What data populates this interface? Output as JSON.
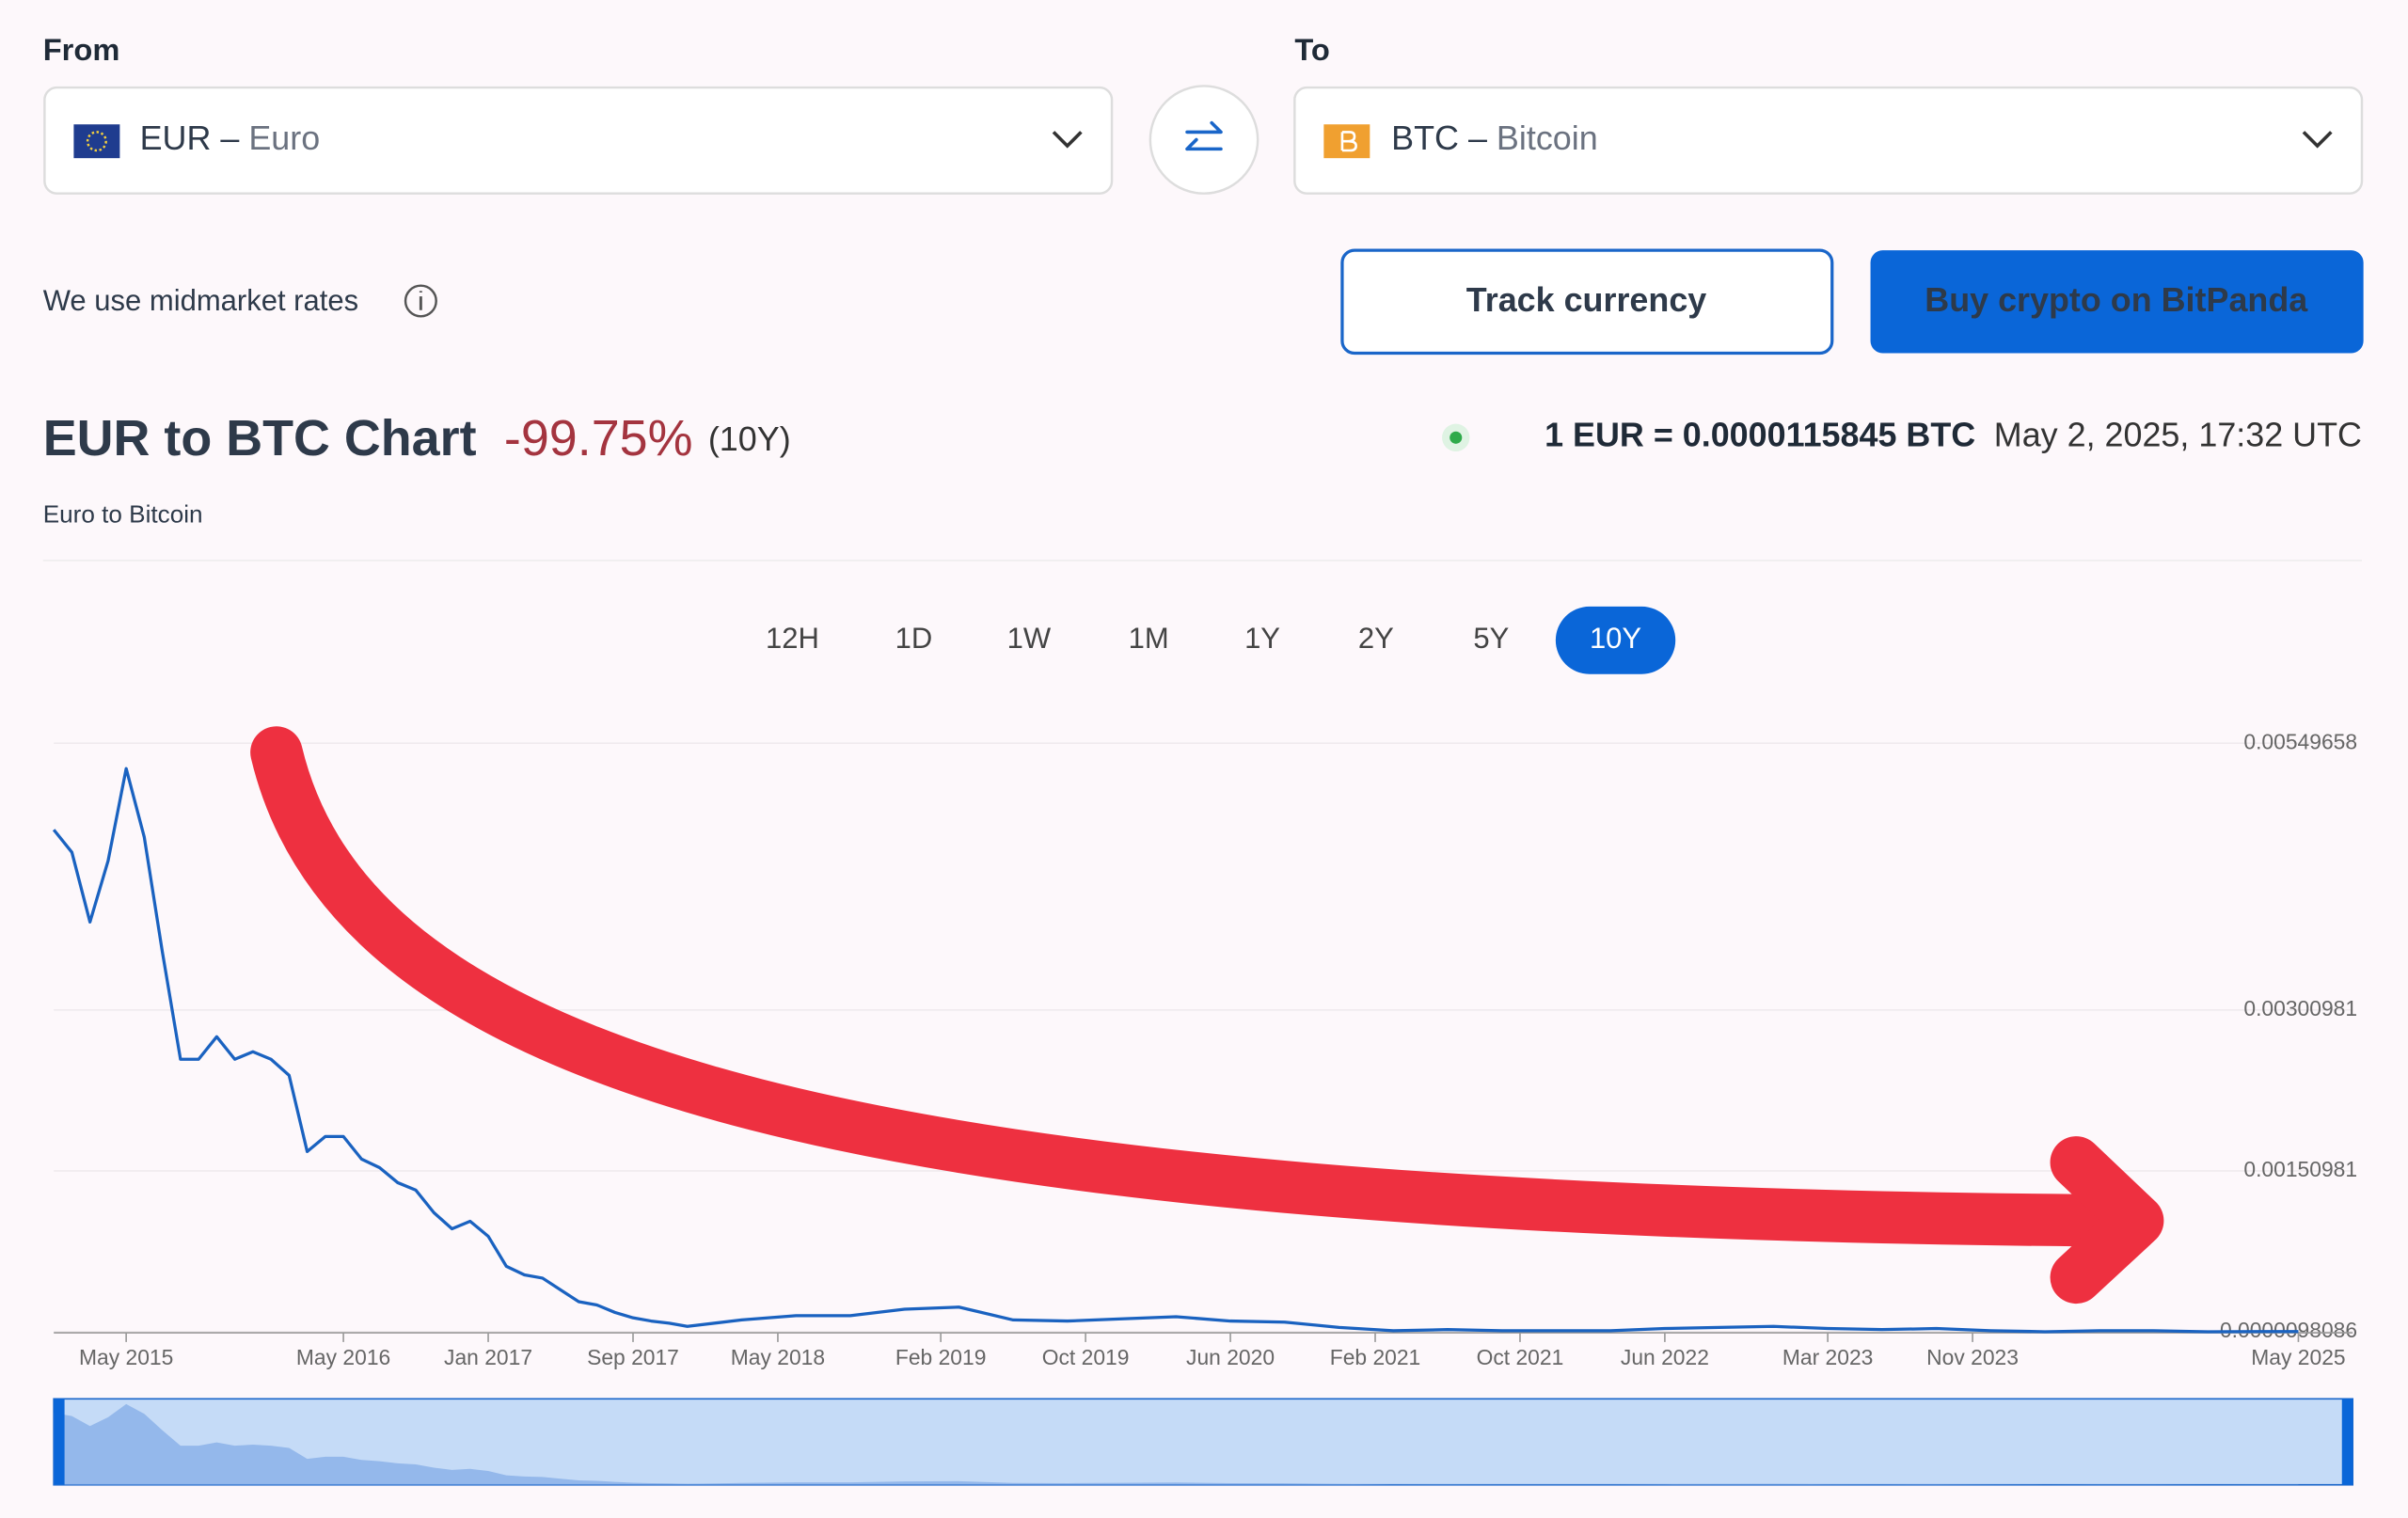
{
  "from": {
    "label": "From",
    "code": "EUR –",
    "name": "Euro"
  },
  "to": {
    "label": "To",
    "code": "BTC –",
    "name": "Bitcoin"
  },
  "rates_note": "We use midmarket rates",
  "buttons": [
    "Track currency",
    "Buy crypto on BitPanda"
  ],
  "header": {
    "title": "EUR to BTC Chart",
    "change": "-99.75%",
    "period": "(10Y)",
    "subtitle": "Euro to Bitcoin",
    "rate": "1 EUR = 0.0000115845 BTC",
    "timestamp": "May 2, 2025, 17:32 UTC"
  },
  "ranges": [
    "12H",
    "1D",
    "1W",
    "1M",
    "1Y",
    "2Y",
    "5Y",
    "10Y"
  ],
  "active_range": "10Y",
  "chart_data": {
    "type": "line",
    "color": "#1a62c0",
    "x": [
      "2015-01",
      "2015-02",
      "2015-03",
      "2015-04",
      "2015-05",
      "2015-06",
      "2015-07",
      "2015-08",
      "2015-09",
      "2015-10",
      "2015-11",
      "2015-12",
      "2016-01",
      "2016-02",
      "2016-03",
      "2016-04",
      "2016-05",
      "2016-06",
      "2016-07",
      "2016-08",
      "2016-09",
      "2016-10",
      "2016-11",
      "2016-12",
      "2017-01",
      "2017-02",
      "2017-03",
      "2017-04",
      "2017-05",
      "2017-06",
      "2017-07",
      "2017-08",
      "2017-09",
      "2017-10",
      "2017-11",
      "2017-12",
      "2018-03",
      "2018-06",
      "2018-09",
      "2018-12",
      "2019-03",
      "2019-06",
      "2019-09",
      "2019-12",
      "2020-03",
      "2020-06",
      "2020-09",
      "2020-12",
      "2021-03",
      "2021-06",
      "2021-09",
      "2021-12",
      "2022-03",
      "2022-06",
      "2022-09",
      "2022-12",
      "2023-03",
      "2023-06",
      "2023-09",
      "2023-12",
      "2024-03",
      "2024-06",
      "2024-09",
      "2024-12",
      "2025-03",
      "2025-05"
    ],
    "values": [
      0.00469,
      0.00448,
      0.00383,
      0.0044,
      0.00526,
      0.00462,
      0.00355,
      0.00255,
      0.00255,
      0.00276,
      0.00255,
      0.00262,
      0.00255,
      0.0024,
      0.00169,
      0.00183,
      0.00183,
      0.00162,
      0.00154,
      0.0014,
      0.00133,
      0.00112,
      0.00097,
      0.00104,
      0.0009,
      0.00062,
      0.00054,
      0.00051,
      0.0004,
      0.00029,
      0.00026,
      0.00019,
      0.00014,
      0.00011,
      9e-05,
      6e-05,
      0.00012,
      0.00016,
      0.00016,
      0.00022,
      0.00024,
      0.00012,
      0.00011,
      0.00013,
      0.00015,
      0.00011,
      0.0001,
      5e-05,
      2e-05,
      3e-05,
      2e-05,
      2e-05,
      2e-05,
      4e-05,
      5e-05,
      6e-05,
      4e-05,
      3e-05,
      4e-05,
      2e-05,
      1e-05,
      2e-05,
      2e-05,
      1e-05,
      1.2e-05,
      1.16e-05
    ],
    "xlim": [
      "2015-01",
      "2025-08"
    ],
    "xticks": [
      {
        "value": "2015-05",
        "label": "May 2015"
      },
      {
        "value": "2016-05",
        "label": "May 2016"
      },
      {
        "value": "2017-01",
        "label": "Jan 2017"
      },
      {
        "value": "2017-09",
        "label": "Sep 2017"
      },
      {
        "value": "2018-05",
        "label": "May 2018"
      },
      {
        "value": "2019-02",
        "label": "Feb 2019"
      },
      {
        "value": "2019-10",
        "label": "Oct 2019"
      },
      {
        "value": "2020-06",
        "label": "Jun 2020"
      },
      {
        "value": "2021-02",
        "label": "Feb 2021"
      },
      {
        "value": "2021-10",
        "label": "Oct 2021"
      },
      {
        "value": "2022-06",
        "label": "Jun 2022"
      },
      {
        "value": "2023-03",
        "label": "Mar 2023"
      },
      {
        "value": "2023-11",
        "label": "Nov 2023"
      },
      {
        "value": "2025-05",
        "label": "May 2025"
      }
    ],
    "ylim": [
      0,
      0.0056
    ],
    "yticks": [
      9.8086e-06,
      0.00150981,
      0.00300981,
      0.00549658
    ],
    "grid": true
  }
}
